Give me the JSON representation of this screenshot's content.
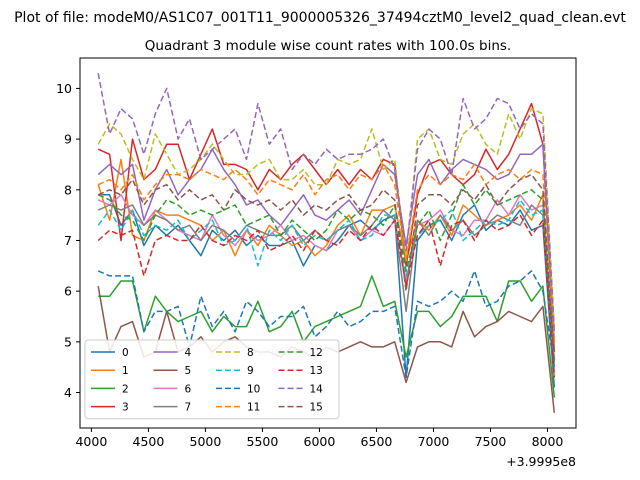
{
  "figure": {
    "suptitle": "Plot of file: modeM0/AS1C07_001T11_9000005326_37494cztM0_level2_quad_clean.evt",
    "offset_text": "+3.9995e8"
  },
  "chart_data": {
    "type": "line",
    "title": "Quadrant 3 module wise count rates with 100.0s bins.",
    "xlabel": "",
    "ylabel": "",
    "xlim": [
      3900,
      8250
    ],
    "ylim": [
      3.3,
      10.6
    ],
    "x_offset": 399950000,
    "xticks": [
      4000,
      4500,
      5000,
      5500,
      6000,
      6500,
      7000,
      7500,
      8000
    ],
    "yticks": [
      4,
      5,
      6,
      7,
      8,
      9,
      10
    ],
    "grid": false,
    "legend": {
      "placement": "lower-left",
      "columns": 4
    },
    "x": [
      4060,
      4160,
      4260,
      4360,
      4460,
      4560,
      4660,
      4760,
      4860,
      4960,
      5060,
      5160,
      5260,
      5360,
      5460,
      5560,
      5660,
      5760,
      5860,
      5960,
      6060,
      6160,
      6260,
      6360,
      6460,
      6560,
      6660,
      6760,
      6860,
      6960,
      7060,
      7160,
      7260,
      7360,
      7460,
      7560,
      7660,
      7760,
      7860,
      7960,
      8060
    ],
    "series": [
      {
        "name": "0",
        "color": "#1f77b4",
        "dash": "solid",
        "values": [
          7.9,
          7.9,
          7.3,
          7.6,
          6.9,
          7.3,
          7.1,
          7.3,
          7.0,
          6.7,
          7.2,
          7.0,
          7.2,
          6.9,
          7.1,
          6.9,
          6.9,
          7.0,
          6.5,
          6.9,
          6.8,
          7.0,
          7.3,
          7.4,
          7.2,
          7.4,
          7.5,
          4.3,
          7.0,
          7.3,
          7.4,
          7.0,
          7.5,
          7.7,
          7.2,
          7.4,
          7.3,
          7.6,
          7.2,
          7.3,
          4.1
        ]
      },
      {
        "name": "1",
        "color": "#ff7f0e",
        "dash": "solid",
        "values": [
          8.1,
          7.4,
          8.6,
          7.1,
          7.0,
          7.6,
          7.5,
          7.5,
          7.4,
          7.3,
          7.0,
          7.2,
          6.7,
          7.2,
          6.9,
          7.3,
          7.1,
          6.9,
          7.0,
          6.7,
          6.9,
          7.3,
          7.5,
          7.1,
          7.6,
          7.6,
          7.7,
          6.6,
          7.4,
          7.2,
          7.5,
          7.1,
          7.7,
          7.5,
          7.3,
          7.4,
          7.5,
          7.7,
          7.4,
          7.9,
          4.3
        ]
      },
      {
        "name": "2",
        "color": "#2ca02c",
        "dash": "solid",
        "values": [
          5.9,
          5.9,
          6.2,
          6.2,
          5.2,
          5.9,
          5.6,
          5.4,
          5.5,
          5.6,
          5.2,
          5.5,
          5.3,
          5.3,
          5.8,
          5.2,
          5.3,
          5.6,
          5.0,
          5.3,
          5.4,
          5.5,
          5.6,
          5.7,
          6.3,
          5.7,
          5.8,
          4.7,
          5.6,
          5.6,
          5.3,
          5.5,
          5.9,
          5.9,
          5.9,
          5.4,
          6.2,
          6.2,
          5.8,
          6.1,
          3.9
        ]
      },
      {
        "name": "3",
        "color": "#d62728",
        "dash": "solid",
        "values": [
          8.8,
          8.7,
          7.0,
          9.0,
          8.2,
          8.4,
          8.9,
          8.9,
          8.2,
          8.7,
          9.2,
          8.5,
          8.5,
          8.4,
          8.0,
          8.4,
          8.2,
          8.5,
          8.7,
          8.4,
          8.1,
          8.4,
          8.1,
          8.4,
          8.2,
          8.6,
          8.5,
          6.5,
          7.9,
          8.5,
          8.6,
          8.3,
          8.1,
          8.3,
          8.8,
          8.4,
          8.7,
          9.2,
          9.7,
          8.9,
          4.8
        ]
      },
      {
        "name": "4",
        "color": "#9467bd",
        "dash": "solid",
        "values": [
          8.3,
          8.5,
          8.3,
          8.5,
          7.4,
          8.0,
          8.4,
          7.9,
          8.2,
          8.4,
          8.8,
          8.4,
          8.1,
          7.7,
          7.8,
          7.5,
          7.3,
          7.6,
          7.9,
          7.5,
          7.4,
          7.6,
          7.8,
          7.5,
          8.0,
          8.5,
          8.3,
          6.9,
          8.3,
          8.6,
          8.1,
          8.4,
          8.6,
          8.5,
          8.4,
          8.2,
          8.3,
          8.7,
          8.7,
          8.9,
          5.0
        ]
      },
      {
        "name": "5",
        "color": "#8c564b",
        "dash": "solid",
        "values": [
          6.1,
          4.8,
          5.3,
          5.4,
          4.7,
          4.8,
          5.6,
          4.8,
          4.9,
          5.1,
          4.8,
          5.0,
          5.1,
          4.9,
          4.8,
          4.8,
          4.7,
          4.9,
          4.8,
          4.7,
          4.9,
          4.8,
          4.9,
          5.0,
          4.9,
          4.9,
          5.0,
          4.2,
          4.9,
          5.0,
          5.0,
          4.9,
          5.6,
          5.1,
          5.3,
          5.4,
          5.6,
          5.5,
          5.4,
          5.7,
          3.6
        ]
      },
      {
        "name": "6",
        "color": "#e377c2",
        "dash": "solid",
        "values": [
          7.8,
          7.7,
          7.9,
          7.5,
          7.3,
          7.6,
          7.4,
          7.2,
          7.1,
          7.0,
          7.5,
          7.1,
          6.9,
          7.2,
          7.0,
          7.1,
          7.3,
          7.0,
          7.1,
          6.9,
          6.8,
          7.2,
          7.3,
          7.0,
          7.2,
          7.1,
          7.4,
          6.2,
          7.3,
          7.4,
          7.6,
          7.2,
          7.1,
          7.4,
          7.4,
          7.8,
          7.5,
          7.9,
          7.6,
          7.7,
          4.4
        ]
      },
      {
        "name": "7",
        "color": "#7f7f7f",
        "dash": "solid",
        "values": [
          7.6,
          7.7,
          7.6,
          7.7,
          7.3,
          7.5,
          7.4,
          7.2,
          7.3,
          7.0,
          7.3,
          7.2,
          7.0,
          7.3,
          7.2,
          7.1,
          7.1,
          7.3,
          7.0,
          7.2,
          7.0,
          7.2,
          7.3,
          7.1,
          7.3,
          7.6,
          7.4,
          5.6,
          7.4,
          7.1,
          7.5,
          7.2,
          7.4,
          7.1,
          7.3,
          7.5,
          7.4,
          7.3,
          7.7,
          7.5,
          4.6
        ]
      },
      {
        "name": "8",
        "color": "#bcbd22",
        "dash": "6,3",
        "values": [
          8.9,
          9.3,
          9.1,
          8.6,
          8.2,
          9.1,
          8.7,
          8.3,
          8.4,
          8.6,
          8.9,
          8.6,
          8.3,
          8.3,
          8.5,
          8.6,
          8.2,
          8.2,
          8.4,
          8.1,
          8.1,
          8.6,
          8.5,
          8.6,
          9.2,
          8.4,
          8.6,
          6.6,
          9.0,
          9.2,
          8.6,
          8.5,
          9.1,
          9.3,
          8.9,
          8.7,
          9.5,
          9.0,
          9.6,
          9.5,
          5.3
        ]
      },
      {
        "name": "9",
        "color": "#17becf",
        "dash": "6,3",
        "values": [
          7.3,
          7.6,
          7.2,
          7.6,
          7.1,
          7.3,
          7.2,
          7.4,
          7.0,
          7.2,
          7.4,
          6.9,
          7.0,
          7.3,
          6.5,
          7.2,
          7.0,
          7.3,
          6.9,
          7.1,
          7.0,
          7.2,
          7.4,
          7.0,
          7.1,
          7.5,
          7.5,
          6.3,
          7.1,
          7.3,
          7.4,
          7.6,
          7.0,
          7.2,
          7.4,
          7.3,
          7.4,
          7.8,
          7.5,
          7.6,
          4.5
        ]
      },
      {
        "name": "10",
        "color": "#1f77b4",
        "dash": "6,3",
        "values": [
          6.4,
          6.3,
          6.3,
          6.3,
          5.2,
          5.6,
          5.6,
          5.7,
          4.9,
          5.9,
          5.3,
          5.6,
          5.2,
          5.8,
          5.6,
          5.3,
          5.5,
          5.5,
          5.7,
          5.1,
          5.3,
          5.6,
          5.3,
          5.4,
          5.6,
          5.6,
          5.7,
          4.3,
          5.8,
          5.7,
          5.8,
          6.0,
          5.8,
          6.4,
          5.7,
          5.8,
          6.1,
          6.2,
          6.4,
          6.0,
          4.5
        ]
      },
      {
        "name": "11",
        "color": "#ff7f0e",
        "dash": "6,3",
        "values": [
          8.1,
          8.2,
          8.0,
          8.3,
          7.8,
          8.1,
          8.3,
          8.3,
          8.2,
          8.4,
          8.3,
          8.2,
          8.4,
          8.2,
          7.9,
          8.2,
          8.1,
          8.0,
          8.3,
          7.9,
          8.2,
          8.3,
          8.0,
          8.3,
          8.2,
          8.5,
          8.1,
          6.6,
          8.0,
          8.3,
          8.1,
          8.3,
          8.2,
          8.5,
          8.1,
          8.3,
          8.4,
          8.2,
          8.4,
          8.3,
          5.0
        ]
      },
      {
        "name": "12",
        "color": "#2ca02c",
        "dash": "6,3",
        "values": [
          7.9,
          7.8,
          7.5,
          7.4,
          7.0,
          7.5,
          7.8,
          7.7,
          7.5,
          7.6,
          7.5,
          7.6,
          7.7,
          7.3,
          7.4,
          7.5,
          7.1,
          7.4,
          7.2,
          7.0,
          7.2,
          7.6,
          7.4,
          7.6,
          7.5,
          7.3,
          7.7,
          6.4,
          7.3,
          7.6,
          7.0,
          7.5,
          8.1,
          7.7,
          8.0,
          7.7,
          7.8,
          7.9,
          8.0,
          7.8,
          4.6
        ]
      },
      {
        "name": "13",
        "color": "#d62728",
        "dash": "6,3",
        "values": [
          7.0,
          7.2,
          7.1,
          7.2,
          6.3,
          7.0,
          7.1,
          7.0,
          7.0,
          7.3,
          7.0,
          6.9,
          7.1,
          7.0,
          7.2,
          6.8,
          6.9,
          7.1,
          6.8,
          7.2,
          7.0,
          6.9,
          7.2,
          7.0,
          7.3,
          7.1,
          7.4,
          6.1,
          7.1,
          7.4,
          6.5,
          7.3,
          7.4,
          7.0,
          7.4,
          7.2,
          7.3,
          7.5,
          7.1,
          7.4,
          4.3
        ]
      },
      {
        "name": "14",
        "color": "#9467bd",
        "dash": "6,3",
        "values": [
          10.3,
          9.1,
          9.6,
          9.4,
          8.7,
          9.5,
          10.0,
          9.0,
          9.4,
          8.6,
          8.8,
          9.0,
          9.2,
          8.6,
          9.7,
          8.9,
          9.2,
          8.4,
          8.7,
          8.5,
          8.8,
          8.6,
          8.7,
          8.7,
          8.8,
          9.0,
          8.4,
          6.8,
          8.8,
          9.2,
          9.0,
          8.3,
          9.8,
          9.2,
          9.4,
          9.8,
          9.7,
          9.2,
          9.5,
          9.3,
          5.2
        ]
      },
      {
        "name": "15",
        "color": "#8c564b",
        "dash": "6,3",
        "values": [
          7.9,
          8.0,
          7.9,
          8.2,
          7.7,
          8.0,
          8.1,
          7.8,
          8.0,
          7.8,
          7.9,
          7.6,
          8.0,
          7.8,
          7.7,
          7.8,
          7.6,
          7.8,
          7.5,
          7.7,
          7.6,
          7.8,
          7.9,
          7.6,
          7.7,
          8.0,
          7.8,
          6.0,
          7.7,
          7.9,
          7.9,
          7.7,
          8.0,
          7.8,
          8.1,
          7.7,
          8.0,
          8.2,
          8.3,
          8.0,
          4.6
        ]
      }
    ]
  }
}
